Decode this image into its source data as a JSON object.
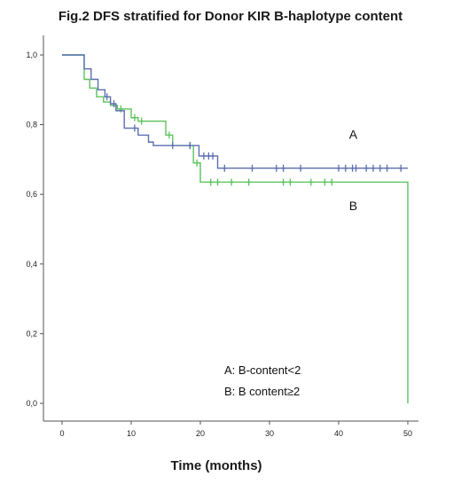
{
  "chart_data": {
    "type": "line",
    "title": "Fig.2 DFS stratified for Donor KIR B-haplotype content",
    "xlabel": "Time (months)",
    "ylabel": "",
    "xlim": [
      0,
      52
    ],
    "ylim": [
      0,
      1.05
    ],
    "x_ticks": [
      {
        "value": 0,
        "label": "0"
      },
      {
        "value": 10,
        "label": "10"
      },
      {
        "value": 20,
        "label": "20"
      },
      {
        "value": 30,
        "label": "30"
      },
      {
        "value": 40,
        "label": "40"
      },
      {
        "value": 50,
        "label": "50"
      }
    ],
    "y_ticks": [
      {
        "value": 0.0,
        "label": "0,0"
      },
      {
        "value": 0.2,
        "label": "0,2"
      },
      {
        "value": 0.4,
        "label": "0,4"
      },
      {
        "value": 0.6,
        "label": "0,6"
      },
      {
        "value": 0.8,
        "label": "0,8"
      },
      {
        "value": 1.0,
        "label": "1,0"
      }
    ],
    "grid": false,
    "series": [
      {
        "name": "A",
        "color": "#5b6eb0",
        "steps": [
          [
            0,
            1.0
          ],
          [
            3.2,
            0.96
          ],
          [
            4.2,
            0.93
          ],
          [
            5.2,
            0.9
          ],
          [
            6.2,
            0.88
          ],
          [
            7.0,
            0.86
          ],
          [
            7.8,
            0.84
          ],
          [
            9.0,
            0.79
          ],
          [
            11.0,
            0.77
          ],
          [
            12.5,
            0.75
          ],
          [
            13.2,
            0.74
          ],
          [
            19.8,
            0.71
          ],
          [
            22.5,
            0.675
          ],
          [
            50,
            0.675
          ]
        ],
        "censored": [
          [
            6.5,
            0.88
          ],
          [
            7.5,
            0.86
          ],
          [
            10.5,
            0.79
          ],
          [
            16.0,
            0.74
          ],
          [
            18.5,
            0.74
          ],
          [
            20.5,
            0.71
          ],
          [
            21.2,
            0.71
          ],
          [
            21.8,
            0.71
          ],
          [
            23.5,
            0.675
          ],
          [
            27.5,
            0.675
          ],
          [
            31.0,
            0.675
          ],
          [
            32.0,
            0.675
          ],
          [
            34.5,
            0.675
          ],
          [
            40.0,
            0.675
          ],
          [
            41.0,
            0.675
          ],
          [
            42.0,
            0.675
          ],
          [
            42.5,
            0.675
          ],
          [
            44.0,
            0.675
          ],
          [
            45.0,
            0.675
          ],
          [
            46.0,
            0.675
          ],
          [
            47.0,
            0.675
          ],
          [
            49.0,
            0.675
          ]
        ]
      },
      {
        "name": "B",
        "color": "#5cc25c",
        "steps": [
          [
            0,
            1.0
          ],
          [
            3.2,
            0.93
          ],
          [
            4.0,
            0.905
          ],
          [
            5.0,
            0.88
          ],
          [
            6.0,
            0.865
          ],
          [
            7.0,
            0.855
          ],
          [
            8.0,
            0.845
          ],
          [
            10.0,
            0.82
          ],
          [
            11.0,
            0.81
          ],
          [
            15.0,
            0.77
          ],
          [
            16.0,
            0.74
          ],
          [
            19.0,
            0.69
          ],
          [
            20.0,
            0.635
          ],
          [
            50,
            0.635
          ],
          [
            50,
            0.0
          ]
        ],
        "censored": [
          [
            8.5,
            0.845
          ],
          [
            10.5,
            0.82
          ],
          [
            11.5,
            0.81
          ],
          [
            15.5,
            0.77
          ],
          [
            18.5,
            0.74
          ],
          [
            19.5,
            0.69
          ],
          [
            21.5,
            0.635
          ],
          [
            22.5,
            0.635
          ],
          [
            24.5,
            0.635
          ],
          [
            27.0,
            0.635
          ],
          [
            32.0,
            0.635
          ],
          [
            33.0,
            0.635
          ],
          [
            36.0,
            0.635
          ],
          [
            38.0,
            0.635
          ],
          [
            39.0,
            0.635
          ]
        ]
      }
    ],
    "curve_labels": [
      {
        "text": "A",
        "x": 41.5,
        "y": 0.76
      },
      {
        "text": "B",
        "x": 41.5,
        "y": 0.555
      }
    ],
    "legend": {
      "placement": "bottom-right",
      "entries": [
        "A:  B-content<2",
        "B:  B content≥2"
      ]
    }
  }
}
